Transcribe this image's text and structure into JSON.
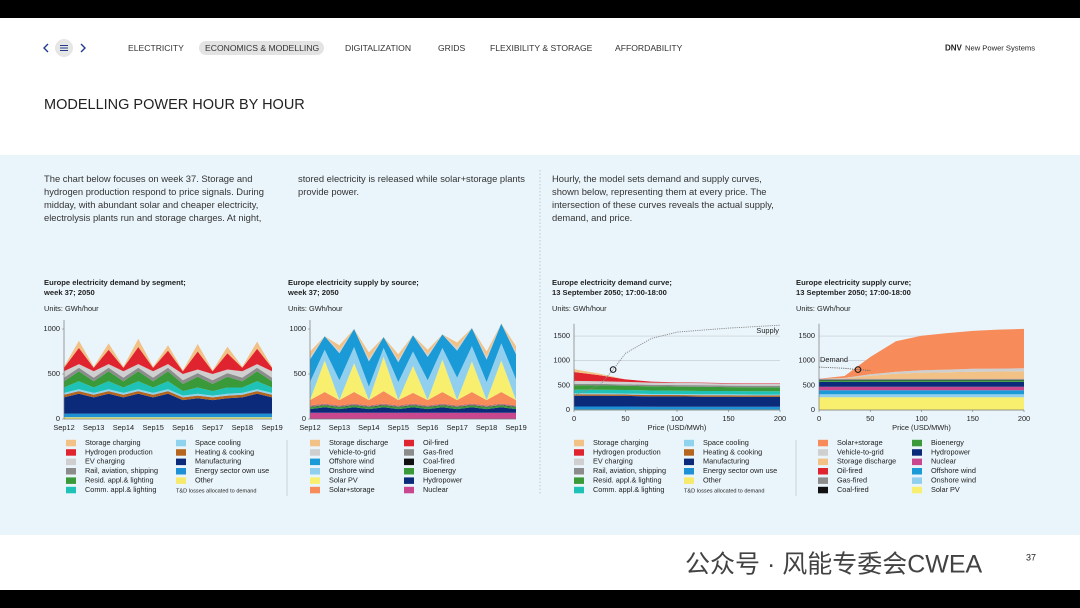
{
  "header": {
    "nav": [
      "ELECTRICITY",
      "ECONOMICS & MODELLING",
      "DIGITALIZATION",
      "GRIDS",
      "FLEXIBILITY & STORAGE",
      "AFFORDABILITY"
    ],
    "brand": "DNV",
    "brand_subtitle": "New Power Systems"
  },
  "title": "MODELLING POWER HOUR BY HOUR",
  "paragraphs": [
    "The chart below focuses on week 37. Storage and hydrogen production respond to price signals. During midday, with abundant solar and cheaper electricity, electrolysis plants run and storage charges. At night,",
    "stored electricity is released while solar+storage plants provide power.",
    "Hourly, the model sets demand and supply curves, shown below, representing them at every price. The intersection of these curves reveals the actual supply, demand, and price."
  ],
  "page_number": "37",
  "watermark": "公众号 · 风能专委会CWEA",
  "chart_data": [
    {
      "type": "area",
      "stacked": true,
      "title": [
        "Europe electricity demand by segment;",
        "week 37; 2050"
      ],
      "units": "Units: GWh/hour",
      "legend_note": "T&D losses allocated to demand",
      "categories": [
        "Sep12",
        null,
        "Sep13",
        null,
        "Sep14",
        null,
        "Sep15",
        null,
        "Sep16",
        null,
        "Sep17",
        null,
        "Sep18",
        null,
        "Sep19"
      ],
      "ylim": [
        0,
        1100
      ],
      "yticks": [
        0,
        500,
        1000
      ],
      "grid": false,
      "series": [
        {
          "name": "Storage charging",
          "color": "#f2c185",
          "values": [
            10,
            80,
            10,
            70,
            10,
            90,
            10,
            60,
            10,
            85,
            10,
            75,
            10,
            80,
            10
          ]
        },
        {
          "name": "Hydrogen production",
          "color": "#e0242f",
          "values": [
            40,
            180,
            40,
            160,
            40,
            190,
            40,
            150,
            30,
            200,
            30,
            180,
            40,
            170,
            40
          ]
        },
        {
          "name": "EV charging",
          "color": "#cfcfcf",
          "values": [
            70,
            40,
            70,
            40,
            70,
            40,
            70,
            40,
            70,
            40,
            70,
            40,
            70,
            40,
            70
          ]
        },
        {
          "name": "Rail, aviation, shipping",
          "color": "#8c8c8c",
          "values": [
            40,
            40,
            40,
            40,
            40,
            40,
            40,
            40,
            40,
            40,
            40,
            40,
            40,
            40,
            40
          ]
        },
        {
          "name": "Resid. appl.& lighting",
          "color": "#3a9a3a",
          "values": [
            70,
            110,
            70,
            110,
            70,
            110,
            70,
            110,
            80,
            120,
            80,
            120,
            70,
            110,
            70
          ]
        },
        {
          "name": "Comm. appl.& lighting",
          "color": "#1fc2b6",
          "values": [
            60,
            90,
            60,
            90,
            60,
            90,
            60,
            90,
            50,
            70,
            50,
            70,
            60,
            90,
            60
          ]
        },
        {
          "name": "Space cooling",
          "color": "#8fd3ee",
          "values": [
            20,
            20,
            20,
            20,
            20,
            20,
            20,
            20,
            20,
            20,
            20,
            20,
            20,
            20,
            20
          ]
        },
        {
          "name": "Heating & cooking",
          "color": "#b5651d",
          "values": [
            30,
            30,
            30,
            30,
            30,
            30,
            30,
            30,
            30,
            30,
            30,
            30,
            30,
            30,
            30
          ]
        },
        {
          "name": "Manufacturing",
          "color": "#0b2a7a",
          "values": [
            180,
            220,
            180,
            220,
            180,
            220,
            180,
            220,
            150,
            170,
            150,
            170,
            180,
            220,
            180
          ]
        },
        {
          "name": "Energy sector own use",
          "color": "#1e90d6",
          "values": [
            40,
            40,
            40,
            40,
            40,
            40,
            40,
            40,
            40,
            40,
            40,
            40,
            40,
            40,
            40
          ]
        },
        {
          "name": "Other",
          "color": "#f7e96a",
          "values": [
            20,
            20,
            20,
            20,
            20,
            20,
            20,
            20,
            20,
            20,
            20,
            20,
            20,
            20,
            20
          ]
        }
      ]
    },
    {
      "type": "area",
      "stacked": true,
      "title": [
        "Europe electricity supply by source;",
        "week 37; 2050"
      ],
      "units": "Units: GWh/hour",
      "categories": [
        "Sep12",
        null,
        "Sep13",
        null,
        "Sep14",
        null,
        "Sep15",
        null,
        "Sep16",
        null,
        "Sep17",
        null,
        "Sep18",
        null,
        "Sep19"
      ],
      "ylim": [
        0,
        1100
      ],
      "yticks": [
        0,
        500,
        1000
      ],
      "grid": false,
      "series": [
        {
          "name": "Storage discharge",
          "color": "#f2c185",
          "values": [
            60,
            0,
            60,
            0,
            70,
            0,
            60,
            0,
            50,
            0,
            60,
            0,
            60,
            0,
            60
          ]
        },
        {
          "name": "Vehicle-to-grid",
          "color": "#cfcfcf",
          "values": [
            30,
            0,
            30,
            0,
            30,
            0,
            30,
            0,
            30,
            0,
            30,
            0,
            30,
            0,
            30
          ]
        },
        {
          "name": "Offshore wind",
          "color": "#1a9ad6",
          "values": [
            250,
            150,
            300,
            200,
            280,
            120,
            220,
            180,
            260,
            150,
            300,
            200,
            250,
            220,
            280
          ]
        },
        {
          "name": "Onshore wind",
          "color": "#90d0ee",
          "values": [
            200,
            120,
            220,
            180,
            150,
            100,
            200,
            160,
            220,
            130,
            250,
            170,
            200,
            190,
            230
          ]
        },
        {
          "name": "Solar PV",
          "color": "#f8ef6e",
          "values": [
            0,
            350,
            0,
            320,
            0,
            380,
            0,
            300,
            0,
            360,
            0,
            340,
            0,
            350,
            0
          ]
        },
        {
          "name": "Solar+storage",
          "color": "#f78b5a",
          "values": [
            60,
            130,
            60,
            130,
            60,
            140,
            60,
            120,
            60,
            130,
            60,
            130,
            60,
            130,
            60
          ]
        },
        {
          "name": "Oil-fired",
          "color": "#e0242f",
          "values": [
            5,
            5,
            5,
            5,
            5,
            5,
            5,
            5,
            5,
            5,
            5,
            5,
            5,
            5,
            5
          ]
        },
        {
          "name": "Gas-fired",
          "color": "#8c8c8c",
          "values": [
            10,
            10,
            10,
            10,
            10,
            10,
            10,
            10,
            10,
            10,
            10,
            10,
            10,
            10,
            10
          ]
        },
        {
          "name": "Coal-fired",
          "color": "#111111",
          "values": [
            5,
            5,
            5,
            5,
            5,
            5,
            5,
            5,
            5,
            5,
            5,
            5,
            5,
            5,
            5
          ]
        },
        {
          "name": "Bioenergy",
          "color": "#3a9a3a",
          "values": [
            20,
            20,
            20,
            20,
            20,
            20,
            20,
            20,
            20,
            20,
            20,
            20,
            20,
            20,
            20
          ]
        },
        {
          "name": "Hydropower",
          "color": "#0b2a7a",
          "values": [
            40,
            60,
            40,
            60,
            40,
            60,
            40,
            60,
            40,
            60,
            40,
            60,
            40,
            60,
            40
          ]
        },
        {
          "name": "Nuclear",
          "color": "#c8478f",
          "values": [
            70,
            70,
            70,
            70,
            70,
            70,
            70,
            70,
            70,
            70,
            70,
            70,
            70,
            70,
            70
          ]
        }
      ]
    },
    {
      "type": "area",
      "stacked": true,
      "title": [
        "Europe electricity demand curve;",
        "13 September 2050; 17:00-18:00"
      ],
      "units": "Units: GWh/hour",
      "legend_note": "T&D losses allocated to demand",
      "x_label": "Price (USD/MWh)",
      "x": [
        0,
        25,
        50,
        75,
        100,
        125,
        150,
        175,
        200
      ],
      "xlim": [
        0,
        200
      ],
      "xticks": [
        0,
        50,
        100,
        150,
        200
      ],
      "ylim": [
        0,
        1750
      ],
      "yticks": [
        0,
        500,
        1000,
        1500
      ],
      "grid": true,
      "series": [
        {
          "name": "Storage charging",
          "color": "#f2c185",
          "values": [
            60,
            30,
            0,
            0,
            0,
            0,
            0,
            0,
            0
          ]
        },
        {
          "name": "Hydrogen production",
          "color": "#e0242f",
          "values": [
            180,
            120,
            50,
            20,
            10,
            10,
            10,
            10,
            10
          ]
        },
        {
          "name": "EV charging",
          "color": "#cfcfcf",
          "values": [
            60,
            55,
            50,
            45,
            45,
            45,
            40,
            40,
            40
          ]
        },
        {
          "name": "Rail, aviation, shipping",
          "color": "#8c8c8c",
          "values": [
            30,
            30,
            30,
            30,
            30,
            30,
            30,
            30,
            30
          ]
        },
        {
          "name": "Resid. appl.& lighting",
          "color": "#3a9a3a",
          "values": [
            90,
            90,
            85,
            85,
            85,
            85,
            80,
            80,
            80
          ]
        },
        {
          "name": "Comm. appl.& lighting",
          "color": "#1fc2b6",
          "values": [
            70,
            70,
            70,
            70,
            65,
            65,
            65,
            65,
            65
          ]
        },
        {
          "name": "Space cooling",
          "color": "#8fd3ee",
          "values": [
            20,
            20,
            20,
            20,
            20,
            20,
            20,
            20,
            20
          ]
        },
        {
          "name": "Heating & cooking",
          "color": "#b5651d",
          "values": [
            30,
            30,
            30,
            30,
            30,
            30,
            30,
            30,
            30
          ]
        },
        {
          "name": "Manufacturing",
          "color": "#0b2a7a",
          "values": [
            220,
            220,
            215,
            210,
            210,
            205,
            205,
            200,
            200
          ]
        },
        {
          "name": "Energy sector own use",
          "color": "#1e90d6",
          "values": [
            60,
            60,
            60,
            55,
            55,
            55,
            55,
            55,
            55
          ]
        },
        {
          "name": "Other",
          "color": "#f7e96a",
          "values": [
            10,
            10,
            10,
            10,
            10,
            10,
            10,
            10,
            10
          ]
        }
      ],
      "line": {
        "name": "Supply",
        "color": "#888888",
        "x": [
          0,
          25,
          38,
          50,
          75,
          100,
          150,
          200
        ],
        "values": [
          300,
          500,
          820,
          1150,
          1450,
          1580,
          1660,
          1720
        ]
      },
      "marker": {
        "x": 38,
        "y": 820
      }
    },
    {
      "type": "area",
      "stacked": true,
      "title": [
        "Europe electricity supply curve;",
        "13 September 2050; 17:00-18:00"
      ],
      "units": "Units: GWh/hour",
      "x_label": "Price (USD/MWh)",
      "x": [
        0,
        25,
        50,
        75,
        100,
        125,
        150,
        175,
        200
      ],
      "xlim": [
        0,
        200
      ],
      "xticks": [
        0,
        50,
        100,
        150,
        200
      ],
      "ylim": [
        0,
        1750
      ],
      "yticks": [
        0,
        500,
        1000,
        1500
      ],
      "grid": true,
      "series": [
        {
          "name": "Solar+storage",
          "color": "#f78b5a",
          "values": [
            0,
            40,
            350,
            620,
            700,
            740,
            770,
            790,
            800
          ]
        },
        {
          "name": "Vehicle-to-grid",
          "color": "#cfcfcf",
          "values": [
            0,
            5,
            30,
            40,
            50,
            55,
            60,
            60,
            60
          ]
        },
        {
          "name": "Storage discharge",
          "color": "#f2c185",
          "values": [
            0,
            10,
            60,
            100,
            120,
            130,
            140,
            145,
            150
          ]
        },
        {
          "name": "Oil-fired",
          "color": "#e0242f",
          "values": [
            5,
            5,
            5,
            5,
            5,
            5,
            5,
            5,
            5
          ]
        },
        {
          "name": "Gas-fired",
          "color": "#8c8c8c",
          "values": [
            20,
            20,
            20,
            20,
            20,
            20,
            20,
            20,
            20
          ]
        },
        {
          "name": "Coal-fired",
          "color": "#111111",
          "values": [
            10,
            10,
            10,
            10,
            10,
            10,
            10,
            10,
            10
          ]
        },
        {
          "name": "Bioenergy",
          "color": "#3a9a3a",
          "values": [
            30,
            30,
            30,
            30,
            30,
            30,
            30,
            30,
            30
          ]
        },
        {
          "name": "Hydropower",
          "color": "#0b2a7a",
          "values": [
            100,
            100,
            100,
            100,
            100,
            100,
            100,
            100,
            100
          ]
        },
        {
          "name": "Nuclear",
          "color": "#c8478f",
          "values": [
            70,
            70,
            70,
            70,
            70,
            70,
            70,
            70,
            70
          ]
        },
        {
          "name": "Offshore wind",
          "color": "#1a9ad6",
          "values": [
            80,
            80,
            80,
            80,
            80,
            80,
            80,
            80,
            80
          ]
        },
        {
          "name": "Onshore wind",
          "color": "#90d0ee",
          "values": [
            60,
            60,
            60,
            60,
            60,
            60,
            60,
            60,
            60
          ]
        },
        {
          "name": "Solar PV",
          "color": "#f8ef6e",
          "values": [
            260,
            260,
            260,
            260,
            260,
            260,
            260,
            260,
            260
          ]
        }
      ],
      "line": {
        "name": "Demand",
        "color": "#666666",
        "x": [
          0,
          25,
          38,
          50
        ],
        "values": [
          870,
          845,
          820,
          800
        ]
      },
      "marker": {
        "x": 38,
        "y": 820
      }
    }
  ]
}
